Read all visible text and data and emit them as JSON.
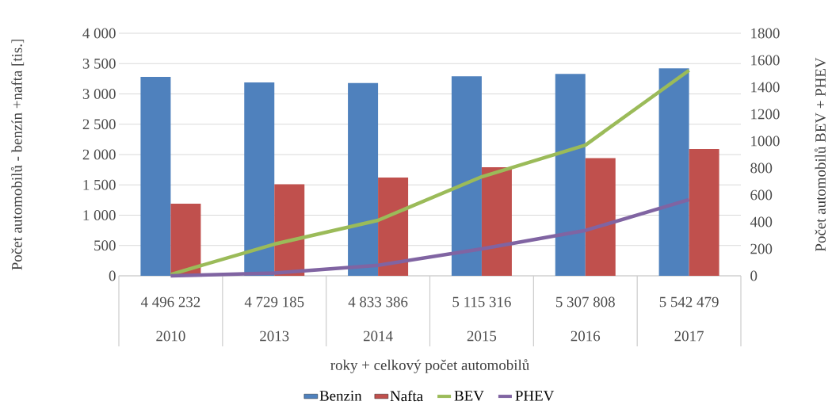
{
  "chart_data": {
    "type": "bar",
    "categories": [
      "2010",
      "2013",
      "2014",
      "2015",
      "2016",
      "2017"
    ],
    "series": [
      {
        "name": "Benzin",
        "color": "#4f81bd",
        "values": [
          3280,
          3190,
          3180,
          3290,
          3330,
          3420
        ]
      },
      {
        "name": "Nafta",
        "color": "#c0504d",
        "values": [
          1190,
          1510,
          1620,
          1790,
          1940,
          2090
        ]
      },
      {
        "name": "BEV",
        "type": "line",
        "axis": "y2",
        "color": "#9bbb59",
        "values": [
          10,
          235,
          412,
          735,
          970,
          1525
        ]
      },
      {
        "name": "PHEV",
        "type": "line",
        "axis": "y2",
        "color": "#8064a2",
        "values": [
          0,
          20,
          78,
          200,
          337,
          565
        ]
      }
    ],
    "ylabel": "Počet automobilů - benzín +nafta [tis.]",
    "y2label": "Počet automobilů BEV + PHEV",
    "xlabel": "roky + celkový počet automobilů",
    "annotations": [
      "4 496 232",
      "4 729 185",
      "4 833 386",
      "5 115 316",
      "5 307 808",
      "5 542 479"
    ],
    "ylim": [
      0,
      4000
    ],
    "yticks": [
      0,
      {
        "value": 500,
        "label": "500"
      },
      {
        "value": 1000,
        "label": "1 000"
      },
      {
        "value": 1500,
        "label": "1 500"
      },
      {
        "value": 2000,
        "label": "2 000"
      },
      {
        "value": 2500,
        "label": "2 500"
      },
      {
        "value": 3000,
        "label": "3 000"
      },
      {
        "value": 3500,
        "label": "3 500"
      },
      {
        "value": 4000,
        "label": "4 000"
      }
    ],
    "y2lim": [
      0,
      1800
    ],
    "y2ticks": [
      0,
      200,
      400,
      600,
      800,
      1000,
      1200,
      1400,
      1600,
      1800
    ],
    "grid": "y",
    "legend": "bottom",
    "marker": "none",
    "line_style": "solid"
  }
}
